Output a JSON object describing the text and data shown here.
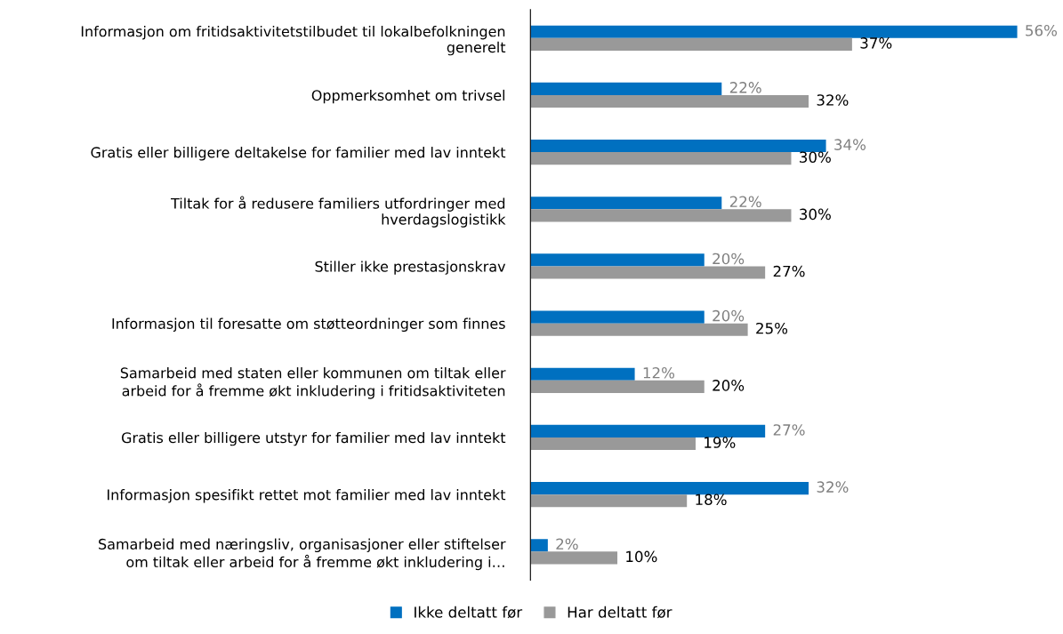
{
  "chart_data": {
    "type": "bar",
    "orientation": "horizontal",
    "legend": "bottom",
    "grid": false,
    "categories": [
      "Informasjon om fritidsaktivitetstilbudet til lokalbefolkningen\ngenerelt",
      "Oppmerksomhet om trivsel",
      "Gratis eller billigere deltakelse for familier med lav inntekt",
      "Tiltak for å redusere familiers utfordringer med\nhverdagslogistikk",
      "Stiller ikke prestasjonskrav",
      "Informasjon til foresatte om støtteordninger som finnes",
      "Samarbeid med staten eller kommunen om tiltak eller\narbeid for å fremme økt inkludering i fritidsaktiviteten",
      "Gratis eller billigere utstyr for familier med lav inntekt",
      "Informasjon spesifikt rettet mot familier med lav inntekt",
      "Samarbeid med næringsliv, organisasjoner eller stiftelser\nom tiltak eller arbeid for å fremme økt inkludering i…"
    ],
    "series": [
      {
        "name": "Ikke deltatt før",
        "color": "#0070c0",
        "values": [
          56,
          22,
          34,
          22,
          20,
          20,
          12,
          27,
          32,
          2
        ],
        "value_labels": [
          "56%",
          "22%",
          "34%",
          "22%",
          "20%",
          "20%",
          "12%",
          "27%",
          "32%",
          "2%"
        ]
      },
      {
        "name": "Har deltatt før",
        "color": "#999999",
        "values": [
          37,
          32,
          30,
          30,
          27,
          25,
          20,
          19,
          18,
          10
        ],
        "value_labels": [
          "37%",
          "32%",
          "30%",
          "30%",
          "27%",
          "25%",
          "20%",
          "19%",
          "18%",
          "10%"
        ]
      }
    ]
  }
}
